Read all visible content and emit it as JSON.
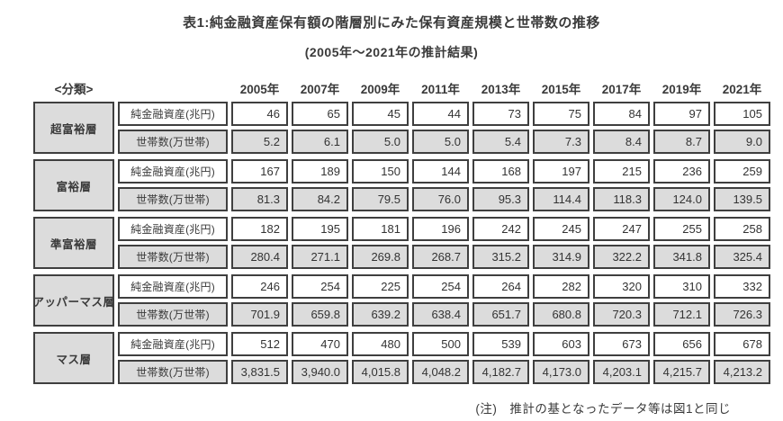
{
  "title": "表1:純金融資産保有額の階層別にみた保有資産規模と世帯数の推移",
  "subtitle": "(2005年〜2021年の推計結果)",
  "note": "(注)　推計の基となったデータ等は図1と同じ",
  "colors": {
    "cell_gray": "#dcdcdc",
    "border": "#3f3f3f",
    "text": "#3a3a3a"
  },
  "chart_data": {
    "type": "table",
    "title": "表1:純金融資産保有額の階層別にみた保有資産規模と世帯数の推移",
    "subtitle": "(2005年〜2021年の推計結果)",
    "categories": [
      "2005年",
      "2007年",
      "2009年",
      "2011年",
      "2013年",
      "2015年",
      "2017年",
      "2019年",
      "2021年"
    ],
    "series": [
      {
        "name": "超富裕層 純金融資産(兆円)",
        "values": [
          46,
          65,
          45,
          44,
          73,
          75,
          84,
          97,
          105
        ]
      },
      {
        "name": "超富裕層 世帯数(万世帯)",
        "values": [
          5.2,
          6.1,
          5.0,
          5.0,
          5.4,
          7.3,
          8.4,
          8.7,
          9.0
        ]
      },
      {
        "name": "富裕層 純金融資産(兆円)",
        "values": [
          167,
          189,
          150,
          144,
          168,
          197,
          215,
          236,
          259
        ]
      },
      {
        "name": "富裕層 世帯数(万世帯)",
        "values": [
          81.3,
          84.2,
          79.5,
          76.0,
          95.3,
          114.4,
          118.3,
          124.0,
          139.5
        ]
      },
      {
        "name": "準富裕層 純金融資産(兆円)",
        "values": [
          182,
          195,
          181,
          196,
          242,
          245,
          247,
          255,
          258
        ]
      },
      {
        "name": "準富裕層 世帯数(万世帯)",
        "values": [
          280.4,
          271.1,
          269.8,
          268.7,
          315.2,
          314.9,
          322.2,
          341.8,
          325.4
        ]
      },
      {
        "name": "アッパーマス層 純金融資産(兆円)",
        "values": [
          246,
          254,
          225,
          254,
          264,
          282,
          320,
          310,
          332
        ]
      },
      {
        "name": "アッパーマス層 世帯数(万世帯)",
        "values": [
          701.9,
          659.8,
          639.2,
          638.4,
          651.7,
          680.8,
          720.3,
          712.1,
          726.3
        ]
      },
      {
        "name": "マス層 純金融資産(兆円)",
        "values": [
          512,
          470,
          480,
          500,
          539,
          603,
          673,
          656,
          678
        ]
      },
      {
        "name": "マス層 世帯数(万世帯)",
        "values": [
          3831.5,
          3940.0,
          4015.8,
          4048.2,
          4182.7,
          4173.0,
          4203.1,
          4215.7,
          4213.2
        ]
      }
    ]
  },
  "table": {
    "classification_header": "<分類>",
    "years": [
      "2005年",
      "2007年",
      "2009年",
      "2011年",
      "2013年",
      "2015年",
      "2017年",
      "2019年",
      "2021年"
    ],
    "row_labels": {
      "assets": "純金融資産(兆円)",
      "households": "世帯数(万世帯)"
    },
    "groups": [
      {
        "tier": "超富裕層",
        "assets": [
          "46",
          "65",
          "45",
          "44",
          "73",
          "75",
          "84",
          "97",
          "105"
        ],
        "households": [
          "5.2",
          "6.1",
          "5.0",
          "5.0",
          "5.4",
          "7.3",
          "8.4",
          "8.7",
          "9.0"
        ]
      },
      {
        "tier": "富裕層",
        "assets": [
          "167",
          "189",
          "150",
          "144",
          "168",
          "197",
          "215",
          "236",
          "259"
        ],
        "households": [
          "81.3",
          "84.2",
          "79.5",
          "76.0",
          "95.3",
          "114.4",
          "118.3",
          "124.0",
          "139.5"
        ]
      },
      {
        "tier": "準富裕層",
        "assets": [
          "182",
          "195",
          "181",
          "196",
          "242",
          "245",
          "247",
          "255",
          "258"
        ],
        "households": [
          "280.4",
          "271.1",
          "269.8",
          "268.7",
          "315.2",
          "314.9",
          "322.2",
          "341.8",
          "325.4"
        ]
      },
      {
        "tier": "アッパーマス層",
        "assets": [
          "246",
          "254",
          "225",
          "254",
          "264",
          "282",
          "320",
          "310",
          "332"
        ],
        "households": [
          "701.9",
          "659.8",
          "639.2",
          "638.4",
          "651.7",
          "680.8",
          "720.3",
          "712.1",
          "726.3"
        ]
      },
      {
        "tier": "マス層",
        "assets": [
          "512",
          "470",
          "480",
          "500",
          "539",
          "603",
          "673",
          "656",
          "678"
        ],
        "households": [
          "3,831.5",
          "3,940.0",
          "4,015.8",
          "4,048.2",
          "4,182.7",
          "4,173.0",
          "4,203.1",
          "4,215.7",
          "4,213.2"
        ]
      }
    ]
  }
}
